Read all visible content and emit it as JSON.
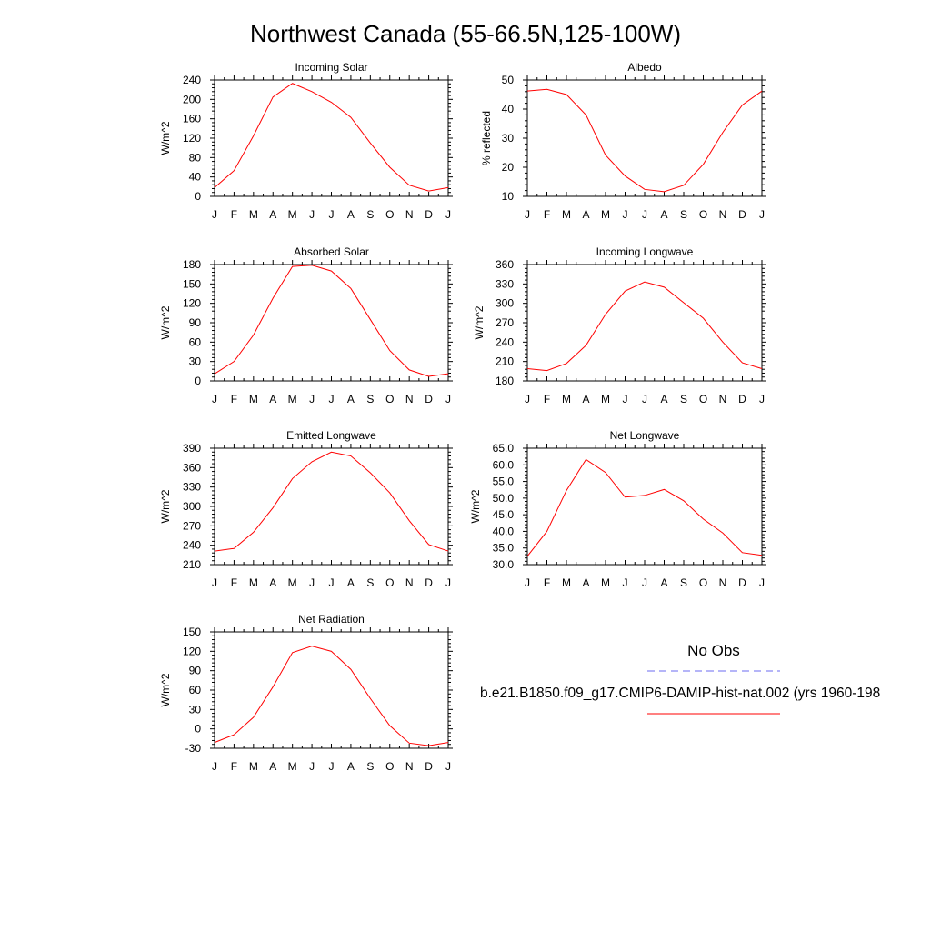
{
  "figure": {
    "title": "Northwest Canada (55-66.5N,125-100W)"
  },
  "legend": {
    "obs_label": "No Obs",
    "obs_color": "#6b6bf0",
    "case_label": "b.e21.B1850.f09_g17.CMIP6-DAMIP-hist-nat.002 (yrs 1960-198",
    "case_color": "#ff0000"
  },
  "chart_data": [
    {
      "type": "line",
      "title": "Incoming Solar",
      "ylabel": "W/m^2",
      "xlabel": "",
      "categories": [
        "J",
        "F",
        "M",
        "A",
        "M",
        "J",
        "J",
        "A",
        "S",
        "O",
        "N",
        "D",
        "J"
      ],
      "yticks": [
        "0",
        "40",
        "80",
        "120",
        "160",
        "200",
        "240"
      ],
      "ylim": [
        0,
        240
      ],
      "series": [
        {
          "values": [
            18,
            53,
            125,
            205,
            233,
            216,
            194,
            163,
            110,
            60,
            23,
            11,
            18
          ]
        }
      ]
    },
    {
      "type": "line",
      "title": "Albedo",
      "ylabel": "% reflected",
      "xlabel": "",
      "categories": [
        "J",
        "F",
        "M",
        "A",
        "M",
        "J",
        "J",
        "A",
        "S",
        "O",
        "N",
        "D",
        "J"
      ],
      "yticks": [
        "10",
        "20",
        "30",
        "40",
        "50"
      ],
      "ylim": [
        10,
        50
      ],
      "series": [
        {
          "values": [
            46.2,
            46.8,
            45.0,
            38.0,
            24.2,
            17.0,
            12.4,
            11.6,
            13.8,
            21.0,
            32.0,
            41.4,
            46.2
          ]
        }
      ]
    },
    {
      "type": "line",
      "title": "Absorbed Solar",
      "ylabel": "W/m^2",
      "xlabel": "",
      "categories": [
        "J",
        "F",
        "M",
        "A",
        "M",
        "J",
        "J",
        "A",
        "S",
        "O",
        "N",
        "D",
        "J"
      ],
      "yticks": [
        "0",
        "30",
        "60",
        "90",
        "120",
        "150",
        "180"
      ],
      "ylim": [
        0,
        180
      ],
      "series": [
        {
          "values": [
            11,
            30,
            71,
            128,
            177,
            179,
            170,
            143,
            95,
            47,
            17,
            7,
            11
          ]
        }
      ]
    },
    {
      "type": "line",
      "title": "Incoming Longwave",
      "ylabel": "W/m^2",
      "xlabel": "",
      "categories": [
        "J",
        "F",
        "M",
        "A",
        "M",
        "J",
        "J",
        "A",
        "S",
        "O",
        "N",
        "D",
        "J"
      ],
      "yticks": [
        "180",
        "210",
        "240",
        "270",
        "300",
        "330",
        "360"
      ],
      "ylim": [
        180,
        360
      ],
      "series": [
        {
          "values": [
            199,
            196,
            207,
            235,
            283,
            319,
            333,
            325,
            301,
            277,
            240,
            208,
            199
          ]
        }
      ]
    },
    {
      "type": "line",
      "title": "Emitted Longwave",
      "ylabel": "W/m^2",
      "xlabel": "",
      "categories": [
        "J",
        "F",
        "M",
        "A",
        "M",
        "J",
        "J",
        "A",
        "S",
        "O",
        "N",
        "D",
        "J"
      ],
      "yticks": [
        "210",
        "240",
        "270",
        "300",
        "330",
        "360",
        "390"
      ],
      "ylim": [
        210,
        390
      ],
      "series": [
        {
          "values": [
            231,
            235,
            260,
            298,
            343,
            369,
            384,
            378,
            352,
            321,
            278,
            241,
            231
          ]
        }
      ]
    },
    {
      "type": "line",
      "title": "Net Longwave",
      "ylabel": "W/m^2",
      "xlabel": "",
      "categories": [
        "J",
        "F",
        "M",
        "A",
        "M",
        "J",
        "J",
        "A",
        "S",
        "O",
        "N",
        "D",
        "J"
      ],
      "yticks": [
        "30.0",
        "35.0",
        "40.0",
        "45.0",
        "50.0",
        "55.0",
        "60.0",
        "65.0"
      ],
      "ylim": [
        30,
        65
      ],
      "series": [
        {
          "values": [
            32.5,
            40.0,
            52.3,
            61.6,
            57.7,
            50.3,
            50.8,
            52.6,
            49.2,
            43.7,
            39.5,
            33.6,
            32.8
          ]
        }
      ]
    },
    {
      "type": "line",
      "title": "Net Radiation",
      "ylabel": "W/m^2",
      "xlabel": "",
      "categories": [
        "J",
        "F",
        "M",
        "A",
        "M",
        "J",
        "J",
        "A",
        "S",
        "O",
        "N",
        "D",
        "J"
      ],
      "yticks": [
        "-30",
        "0",
        "30",
        "60",
        "90",
        "120",
        "150"
      ],
      "ylim": [
        -30,
        150
      ],
      "series": [
        {
          "values": [
            -21,
            -9,
            18,
            65,
            118,
            128,
            120,
            92,
            47,
            5,
            -22,
            -26,
            -21
          ]
        }
      ]
    }
  ]
}
